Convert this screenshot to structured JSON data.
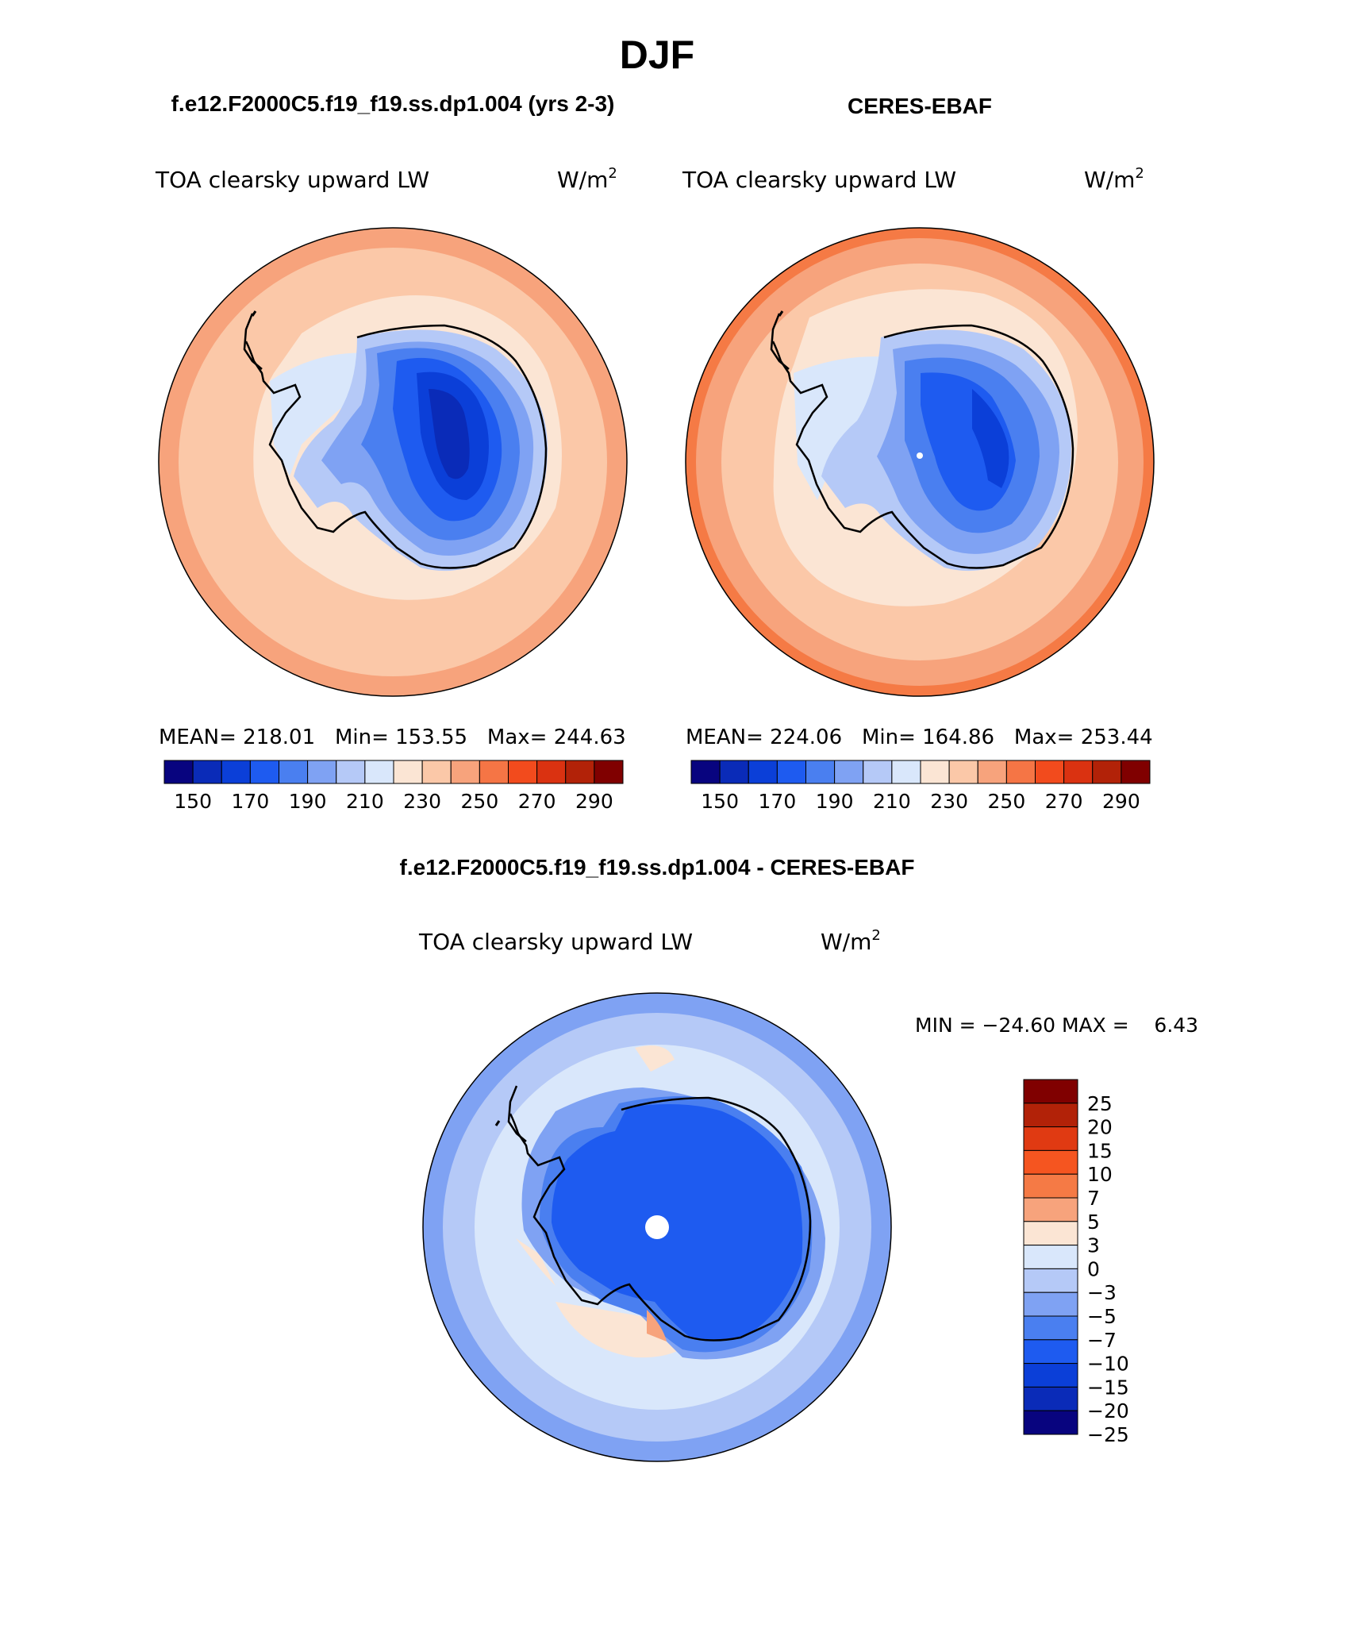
{
  "page_title": "DJF",
  "panels": [
    {
      "case_title": "f.e12.F2000C5.f19_f19.ss.dp1.004 (yrs 2-3)",
      "variable": "TOA clearsky upward LW",
      "units_base": "W/m",
      "units_exp": "2",
      "stats": {
        "mean_label": "MEAN=",
        "mean": "218.01",
        "min_label": "Min=",
        "min": "153.55",
        "max_label": "Max=",
        "max": "244.63"
      }
    },
    {
      "case_title": "CERES-EBAF",
      "variable": "TOA clearsky upward LW",
      "units_base": "W/m",
      "units_exp": "2",
      "stats": {
        "mean_label": "MEAN=",
        "mean": "224.06",
        "min_label": "Min=",
        "min": "164.86",
        "max_label": "Max=",
        "max": "253.44"
      }
    }
  ],
  "diff_panel": {
    "case_title": "f.e12.F2000C5.f19_f19.ss.dp1.004 - CERES-EBAF",
    "variable": "TOA clearsky upward LW",
    "units_base": "W/m",
    "units_exp": "2",
    "minmax_text": "MIN = −24.60 MAX =    6.43"
  },
  "colorbar_abs": {
    "colors": [
      "#08047f",
      "#0a2bb8",
      "#0b3fd8",
      "#1e5bf0",
      "#4a7ff0",
      "#7fa2f3",
      "#b5c9f7",
      "#d9e7fb",
      "#fbe5d4",
      "#fbc8a8",
      "#f7a37c",
      "#f57545",
      "#f24b1d",
      "#da3211",
      "#b22208",
      "#800000"
    ],
    "tick_labels": [
      "150",
      "170",
      "190",
      "210",
      "230",
      "250",
      "270",
      "290"
    ]
  },
  "colorbar_diff": {
    "colors": [
      "#800000",
      "#b22208",
      "#e03a12",
      "#f55520",
      "#f57a45",
      "#f7a37c",
      "#fbe5d4",
      "#d9e7fb",
      "#b5c9f7",
      "#7fa2f3",
      "#4a7ff0",
      "#1e5bf0",
      "#0b3fd8",
      "#0a2bb8",
      "#08047f"
    ],
    "tick_labels": [
      "25",
      "20",
      "15",
      "10",
      "7",
      "5",
      "3",
      "0",
      "−3",
      "−5",
      "−7",
      "−10",
      "−15",
      "−20",
      "−25"
    ]
  }
}
